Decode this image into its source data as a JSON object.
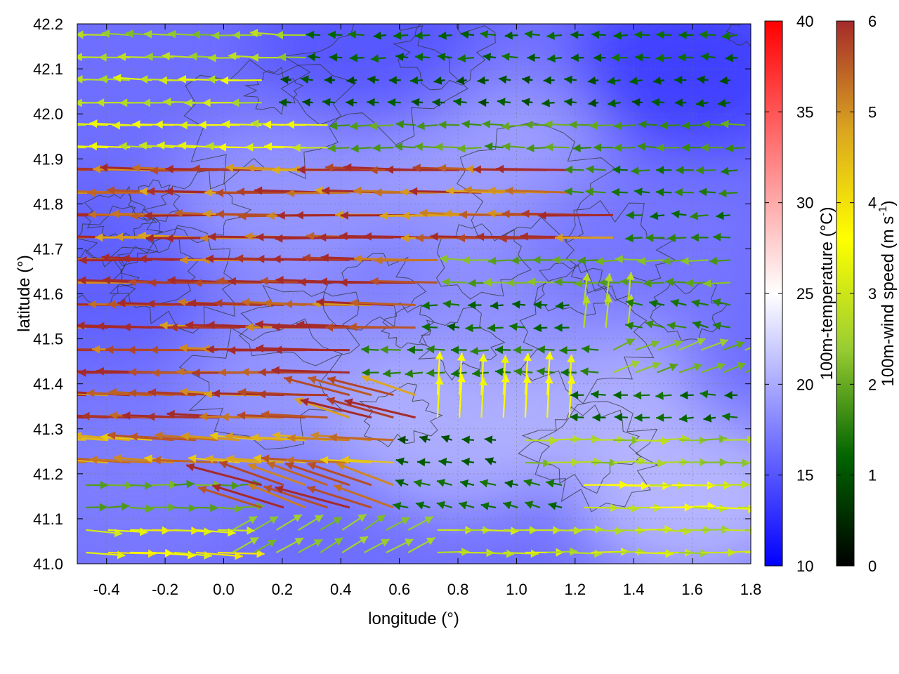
{
  "chart_data": {
    "type": "heatmap",
    "xlabel": "longitude (°)",
    "ylabel": "latitude (°)",
    "xlim": [
      -0.5,
      1.8
    ],
    "ylim": [
      41.0,
      42.2
    ],
    "xticks": [
      "-0.4",
      "-0.2",
      "0.0",
      "0.2",
      "0.4",
      "0.6",
      "0.8",
      "1.0",
      "1.2",
      "1.4",
      "1.6",
      "1.8"
    ],
    "xtick_values": [
      -0.4,
      -0.2,
      0.0,
      0.2,
      0.4,
      0.6,
      0.8,
      1.0,
      1.2,
      1.4,
      1.6,
      1.8
    ],
    "yticks": [
      "41.0",
      "41.1",
      "41.2",
      "41.3",
      "41.4",
      "41.5",
      "41.6",
      "41.7",
      "41.8",
      "41.9",
      "42.0",
      "42.1",
      "42.2"
    ],
    "ytick_values": [
      41.0,
      41.1,
      41.2,
      41.3,
      41.4,
      41.5,
      41.6,
      41.7,
      41.8,
      41.9,
      42.0,
      42.1,
      42.2
    ],
    "grid": true,
    "temperature_colorbar": {
      "label": "100m-temperature (°C)",
      "range": [
        10,
        40
      ],
      "ticks": [
        "10",
        "15",
        "20",
        "25",
        "30",
        "35",
        "40"
      ],
      "tick_values": [
        10,
        15,
        20,
        25,
        30,
        35,
        40
      ],
      "colors": [
        "#0000ff",
        "#ffffff",
        "#ff0000"
      ]
    },
    "wind_colorbar": {
      "label_main": "100m-wind speed (m s",
      "label_sup": "-1",
      "label_end": ")",
      "range": [
        0,
        6
      ],
      "ticks": [
        "0",
        "1",
        "2",
        "3",
        "4",
        "5",
        "6"
      ],
      "tick_values": [
        0,
        1,
        2,
        3,
        4,
        5,
        6
      ],
      "colors": [
        "#000000",
        "#006400",
        "#9acd32",
        "#ffff00",
        "#daa520",
        "#a52a2a"
      ]
    },
    "temperature_regions": [
      {
        "lon": -0.3,
        "lat": 41.2,
        "t": 17.5
      },
      {
        "lon": 0.3,
        "lat": 41.4,
        "t": 19.0
      },
      {
        "lon": 0.8,
        "lat": 41.3,
        "t": 20.5
      },
      {
        "lon": 1.2,
        "lat": 41.4,
        "t": 20.5
      },
      {
        "lon": 1.6,
        "lat": 41.15,
        "t": 21.0
      },
      {
        "lon": 0.2,
        "lat": 41.8,
        "t": 19.0
      },
      {
        "lon": 0.9,
        "lat": 41.9,
        "t": 19.5
      },
      {
        "lon": 1.0,
        "lat": 41.6,
        "t": 18.5
      },
      {
        "lon": 1.4,
        "lat": 41.7,
        "t": 17.0
      },
      {
        "lon": 0.5,
        "lat": 42.15,
        "t": 15.0
      },
      {
        "lon": 1.6,
        "lat": 42.1,
        "t": 13.5
      },
      {
        "lon": -0.45,
        "lat": 41.65,
        "t": 15.5
      }
    ],
    "wind_field": [
      {
        "lat": 42.15,
        "lon_start": -0.5,
        "lon_end": 0.3,
        "u": -2.5,
        "v": 0.1
      },
      {
        "lat": 42.15,
        "lon_start": 0.3,
        "lon_end": 1.8,
        "u": -1.2,
        "v": 0.0
      },
      {
        "lat": 42.05,
        "lon_start": -0.5,
        "lon_end": 0.2,
        "u": -3.0,
        "v": 0.1
      },
      {
        "lat": 42.05,
        "lon_start": 0.2,
        "lon_end": 1.8,
        "u": -1.0,
        "v": 0.0
      },
      {
        "lat": 41.95,
        "lon_start": -0.5,
        "lon_end": 0.4,
        "u": -3.2,
        "v": 0.1
      },
      {
        "lat": 41.95,
        "lon_start": 0.4,
        "lon_end": 1.8,
        "u": -1.8,
        "v": 0.0
      },
      {
        "lat": 41.85,
        "lon_start": -0.5,
        "lon_end": 1.2,
        "u": -5.5,
        "v": 0.1
      },
      {
        "lat": 41.85,
        "lon_start": 1.2,
        "lon_end": 1.8,
        "u": -1.5,
        "v": 0.0
      },
      {
        "lat": 41.75,
        "lon_start": -0.5,
        "lon_end": 1.4,
        "u": -5.6,
        "v": 0.05
      },
      {
        "lat": 41.75,
        "lon_start": 1.4,
        "lon_end": 1.8,
        "u": -1.4,
        "v": 0.0
      },
      {
        "lat": 41.65,
        "lon_start": -0.5,
        "lon_end": 0.8,
        "u": -5.8,
        "v": 0.1
      },
      {
        "lat": 41.65,
        "lon_start": 0.8,
        "lon_end": 1.8,
        "u": -2.0,
        "v": 0.0
      },
      {
        "lat": 41.55,
        "lon_start": -0.5,
        "lon_end": 0.7,
        "u": -5.7,
        "v": 0.15
      },
      {
        "lat": 41.55,
        "lon_start": 0.7,
        "lon_end": 1.2,
        "u": -1.2,
        "v": 0.0
      },
      {
        "lat": 41.55,
        "lon_start": 1.2,
        "lon_end": 1.4,
        "u": 0.3,
        "v": 2.8
      },
      {
        "lat": 41.55,
        "lon_start": 1.4,
        "lon_end": 1.8,
        "u": -1.5,
        "v": 0.3
      },
      {
        "lat": 41.45,
        "lon_start": -0.5,
        "lon_end": 0.5,
        "u": -5.8,
        "v": 0.1
      },
      {
        "lat": 41.45,
        "lon_start": 0.5,
        "lon_end": 1.3,
        "u": -1.5,
        "v": 0.0
      },
      {
        "lat": 41.45,
        "lon_start": 1.3,
        "lon_end": 1.8,
        "u": 2.0,
        "v": 0.8
      },
      {
        "lat": 41.35,
        "lon_start": -0.5,
        "lon_end": 0.4,
        "u": -5.5,
        "v": 0.2
      },
      {
        "lat": 41.35,
        "lon_start": 0.4,
        "lon_end": 0.7,
        "u": -5.2,
        "v": 1.5
      },
      {
        "lat": 41.35,
        "lon_start": 0.7,
        "lon_end": 1.2,
        "u": 0.2,
        "v": 3.5
      },
      {
        "lat": 41.35,
        "lon_start": 1.2,
        "lon_end": 1.8,
        "u": -1.2,
        "v": 0.0
      },
      {
        "lat": 41.25,
        "lon_start": -0.5,
        "lon_end": 0.6,
        "u": -5.0,
        "v": 0.3
      },
      {
        "lat": 41.25,
        "lon_start": 0.6,
        "lon_end": 1.0,
        "u": -1.0,
        "v": 0.2
      },
      {
        "lat": 41.25,
        "lon_start": 1.0,
        "lon_end": 1.8,
        "u": 2.5,
        "v": 0.0
      },
      {
        "lat": 41.15,
        "lon_start": -0.5,
        "lon_end": 0.1,
        "u": 2.0,
        "v": 0.0
      },
      {
        "lat": 41.15,
        "lon_start": 0.1,
        "lon_end": 0.6,
        "u": -5.5,
        "v": 1.8
      },
      {
        "lat": 41.15,
        "lon_start": 0.6,
        "lon_end": 1.2,
        "u": -1.2,
        "v": 0.3
      },
      {
        "lat": 41.15,
        "lon_start": 1.2,
        "lon_end": 1.8,
        "u": 3.2,
        "v": 0.0
      },
      {
        "lat": 41.05,
        "lon_start": -0.5,
        "lon_end": 0.0,
        "u": 3.5,
        "v": -0.2
      },
      {
        "lat": 41.05,
        "lon_start": 0.0,
        "lon_end": 0.7,
        "u": 2.0,
        "v": 1.2
      },
      {
        "lat": 41.05,
        "lon_start": 0.7,
        "lon_end": 1.8,
        "u": 2.8,
        "v": 0.0
      }
    ]
  }
}
